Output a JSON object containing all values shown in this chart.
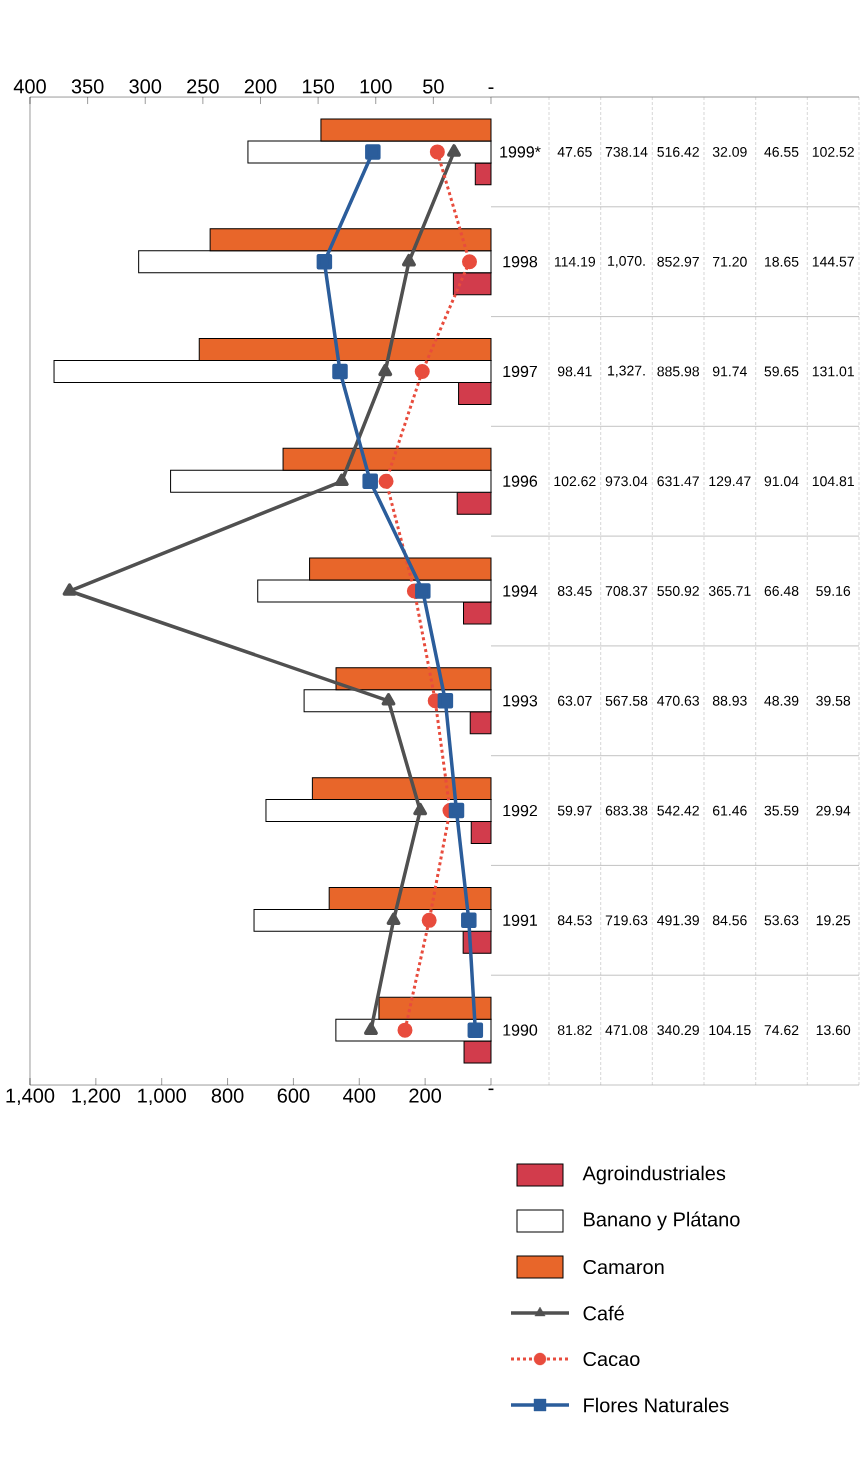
{
  "chart_data": {
    "type": "bar",
    "orientation": "horizontal",
    "categories": [
      "1999*",
      "1998",
      "1997",
      "1996",
      "1994",
      "1993",
      "1992",
      "1991",
      "1990"
    ],
    "series": [
      {
        "name": "Agroindustriales",
        "color": "#d23c4c",
        "values": [
          47.65,
          114.19,
          98.41,
          102.62,
          83.45,
          63.07,
          59.97,
          84.53,
          81.82
        ],
        "value_labels": [
          "47.65",
          "114.19",
          "98.41",
          "102.62",
          "83.45",
          "63.07",
          "59.97",
          "84.53",
          "81.82"
        ]
      },
      {
        "name": "Banano y Plátano",
        "color": "#ffffff",
        "values": [
          738.14,
          1070,
          1327,
          973.04,
          708.37,
          567.58,
          683.38,
          719.63,
          471.08
        ],
        "value_labels": [
          "738.14",
          "1,070.",
          "1,327.",
          "973.04",
          "708.37",
          "567.58",
          "683.38",
          "719.63",
          "471.08"
        ]
      },
      {
        "name": "Camaron",
        "color": "#e8662a",
        "values": [
          516.42,
          852.97,
          885.98,
          631.47,
          550.92,
          470.63,
          542.42,
          491.39,
          340.29
        ],
        "value_labels": [
          "516.42",
          "852.97",
          "885.98",
          "631.47",
          "550.92",
          "470.63",
          "542.42",
          "491.39",
          "340.29"
        ]
      },
      {
        "name": "Café",
        "type": "line",
        "axis": "x2",
        "color": "#505050",
        "marker": "triangle",
        "line_style": "solid",
        "values": [
          32.09,
          71.2,
          91.74,
          129.47,
          365.71,
          88.93,
          61.46,
          84.56,
          104.15
        ],
        "value_labels": [
          "32.09",
          "71.20",
          "91.74",
          "129.47",
          "365.71",
          "88.93",
          "61.46",
          "84.56",
          "104.15"
        ]
      },
      {
        "name": "Cacao",
        "type": "line",
        "axis": "x2",
        "color": "#e84c3d",
        "marker": "circle",
        "line_style": "dashed",
        "values": [
          46.55,
          18.65,
          59.65,
          91.04,
          66.48,
          48.39,
          35.59,
          53.63,
          74.62
        ],
        "value_labels": [
          "46.55",
          "18.65",
          "59.65",
          "91.04",
          "66.48",
          "48.39",
          "35.59",
          "53.63",
          "74.62"
        ]
      },
      {
        "name": "Flores Naturales",
        "type": "line",
        "axis": "x2",
        "color": "#2b5d9b",
        "marker": "square",
        "line_style": "solid",
        "values": [
          102.52,
          144.57,
          131.01,
          104.81,
          59.16,
          39.58,
          29.94,
          19.25,
          13.6
        ],
        "value_labels": [
          "102.52",
          "144.57",
          "131.01",
          "104.81",
          "59.16",
          "39.58",
          "29.94",
          "19.25",
          "13.60"
        ]
      }
    ],
    "xlim": [
      1400,
      0
    ],
    "xticks": [
      {
        "value": 1400,
        "label": "1,400"
      },
      {
        "value": 1200,
        "label": "1,200"
      },
      {
        "value": 1000,
        "label": "1,000"
      },
      800,
      600,
      400,
      200,
      {
        "value": 0,
        "label": "-"
      }
    ],
    "x2lim": [
      400,
      0
    ],
    "x2ticks": [
      400,
      350,
      300,
      250,
      200,
      150,
      100,
      50,
      {
        "value": 0,
        "label": "-"
      }
    ],
    "legend": "bottom right"
  }
}
